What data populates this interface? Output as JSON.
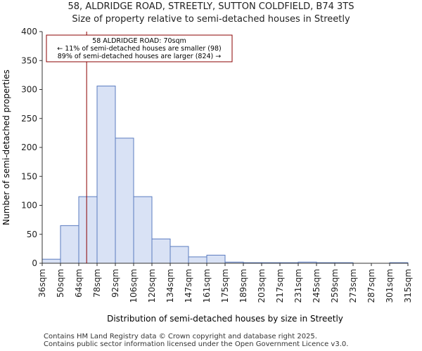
{
  "title_line1": "58, ALDRIDGE ROAD, STREETLY, SUTTON COLDFIELD, B74 3TS",
  "title_line2": "Size of property relative to semi-detached houses in Streetly",
  "footer_line1": "Contains HM Land Registry data © Crown copyright and database right 2025.",
  "footer_line2": "Contains public sector information licensed under the Open Government Licence v3.0.",
  "colors": {
    "bar_fill": "#d9e2f5",
    "bar_stroke": "#5b7cc0",
    "marker": "#8b0000",
    "axis": "#333333"
  },
  "chart_data": {
    "type": "bar",
    "xlabel": "Distribution of semi-detached houses by size in Streetly",
    "ylabel": "Number of semi-detached properties",
    "ylim": [
      0,
      400
    ],
    "yticks": [
      0,
      50,
      100,
      150,
      200,
      250,
      300,
      350,
      400
    ],
    "tick_labels": [
      "36sqm",
      "50sqm",
      "64sqm",
      "78sqm",
      "92sqm",
      "106sqm",
      "120sqm",
      "134sqm",
      "147sqm",
      "161sqm",
      "175sqm",
      "189sqm",
      "203sqm",
      "217sqm",
      "231sqm",
      "245sqm",
      "259sqm",
      "273sqm",
      "287sqm",
      "301sqm",
      "315sqm"
    ],
    "values": [
      7,
      65,
      115,
      306,
      216,
      115,
      42,
      29,
      11,
      14,
      2,
      1,
      1,
      1,
      2,
      1,
      1,
      0,
      0,
      1
    ],
    "property_marker": {
      "bin_position": 2.43
    },
    "annotation": {
      "line1": "58 ALDRIDGE ROAD: 70sqm",
      "line2": "← 11% of semi-detached houses are smaller (98)",
      "line3": "89% of semi-detached houses are larger (824) →"
    }
  }
}
